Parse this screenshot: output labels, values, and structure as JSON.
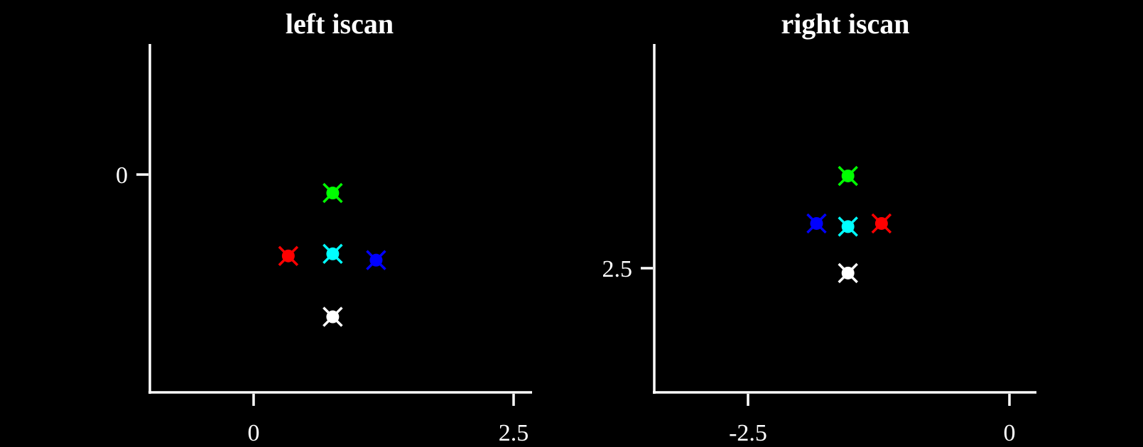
{
  "chart_data": [
    {
      "type": "scatter",
      "title": "left iscan",
      "xlabel": "",
      "ylabel": "",
      "xlim": [
        -1.0,
        2.7
      ],
      "ylim": [
        0.41,
        -1.25
      ],
      "y_inverted": true,
      "xticks": [
        0,
        2.5
      ],
      "xtick_labels": [
        "0",
        "2.5"
      ],
      "yticks": [
        0
      ],
      "ytick_labels": [
        "0"
      ],
      "grid": false,
      "legend": "none",
      "marker": "x",
      "series": [
        {
          "color": "#ff0000",
          "x": [
            0.34
          ],
          "y": [
            -0.24
          ]
        },
        {
          "color": "#ffffff",
          "x": [
            0.77
          ],
          "y": [
            0.05
          ]
        },
        {
          "color": "#00ffff",
          "x": [
            0.77
          ],
          "y": [
            -0.25
          ]
        },
        {
          "color": "#0000ff",
          "x": [
            1.19
          ],
          "y": [
            -0.22
          ]
        },
        {
          "color": "#00ff00",
          "x": [
            0.77
          ],
          "y": [
            -0.54
          ]
        }
      ]
    },
    {
      "type": "scatter",
      "title": "right iscan",
      "xlabel": "",
      "ylabel": "",
      "xlim": [
        -3.4,
        0.25
      ],
      "ylim": [
        3.5,
        0.2
      ],
      "y_inverted": true,
      "xticks": [
        -2.5,
        0
      ],
      "xtick_labels": [
        "-2.5",
        "0"
      ],
      "yticks": [
        2.5
      ],
      "ytick_labels": [
        "2.5"
      ],
      "grid": false,
      "legend": "none",
      "marker": "x",
      "series": [
        {
          "color": "#00ff00",
          "x": [
            -1.55
          ],
          "y": [
            1.45
          ]
        },
        {
          "color": "#0000ff",
          "x": [
            -1.85
          ],
          "y": [
            1.9
          ]
        },
        {
          "color": "#00ffff",
          "x": [
            -1.55
          ],
          "y": [
            1.93
          ]
        },
        {
          "color": "#ff0000",
          "x": [
            -1.23
          ],
          "y": [
            1.9
          ]
        },
        {
          "color": "#ffffff",
          "x": [
            -1.55
          ],
          "y": [
            2.37
          ]
        }
      ]
    }
  ]
}
